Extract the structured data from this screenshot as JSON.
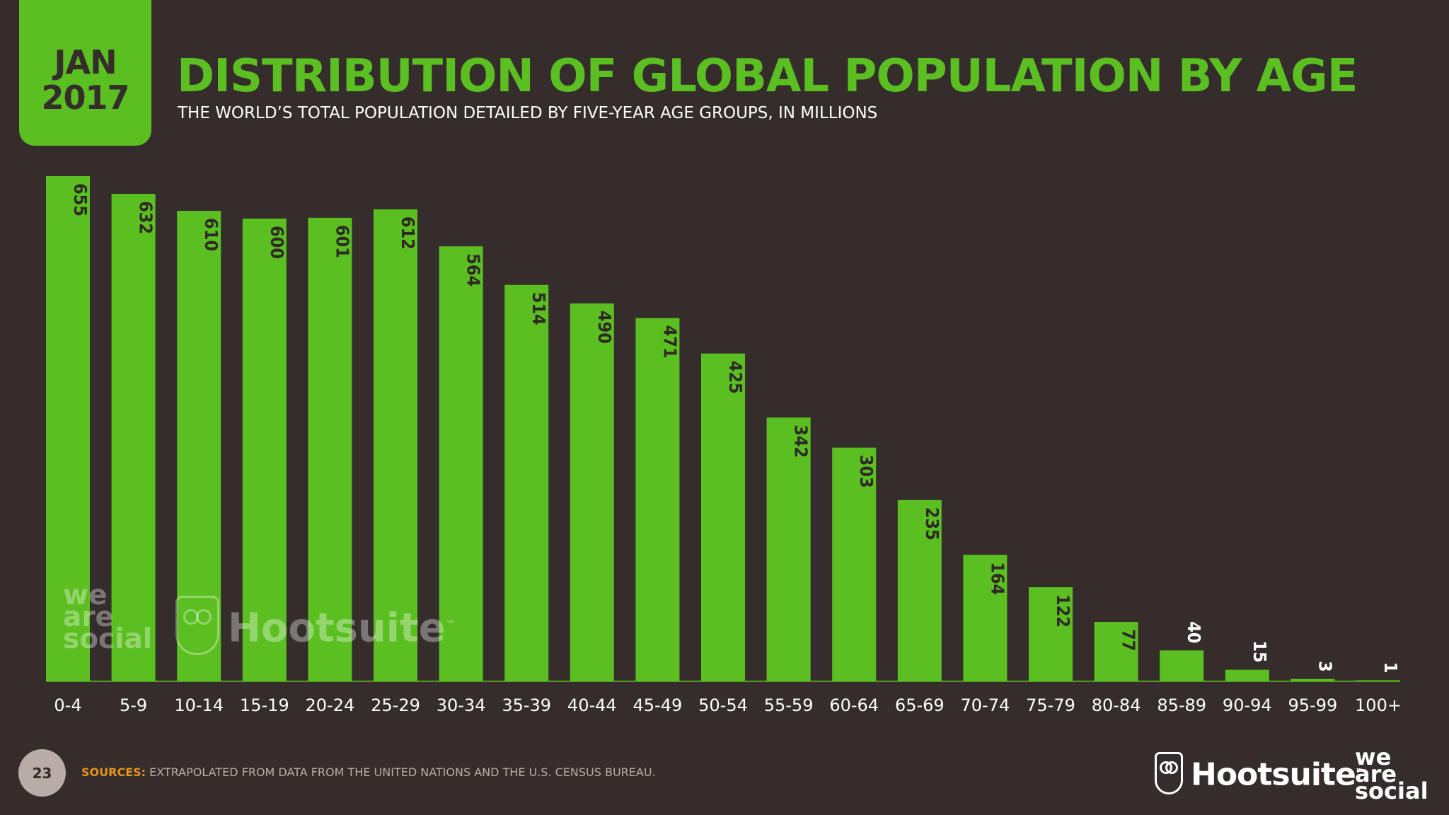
{
  "header": {
    "date_month": "JAN",
    "date_year": "2017",
    "title": "DISTRIBUTION OF GLOBAL POPULATION BY AGE",
    "subtitle": "THE WORLD’S TOTAL POPULATION DETAILED BY FIVE-YEAR AGE GROUPS, IN MILLIONS"
  },
  "chart_data": {
    "type": "bar",
    "title": "DISTRIBUTION OF GLOBAL POPULATION BY AGE",
    "subtitle": "THE WORLD’S TOTAL POPULATION DETAILED BY FIVE-YEAR AGE GROUPS, IN MILLIONS",
    "xlabel": "",
    "ylabel": "",
    "categories": [
      "0-4",
      "5-9",
      "10-14",
      "15-19",
      "20-24",
      "25-29",
      "30-34",
      "35-39",
      "40-44",
      "45-49",
      "50-54",
      "55-59",
      "60-64",
      "65-69",
      "70-74",
      "75-79",
      "80-84",
      "85-89",
      "90-94",
      "95-99",
      "100+"
    ],
    "values": [
      655,
      632,
      610,
      600,
      601,
      612,
      564,
      514,
      490,
      471,
      425,
      342,
      303,
      235,
      164,
      122,
      77,
      40,
      15,
      3,
      1
    ],
    "ylim": [
      0,
      655
    ],
    "grid": false,
    "bar_color": "#5bbf21",
    "data_labels": "rotated inside bars"
  },
  "watermark": {
    "brand_a": "we are social",
    "brand_b": "Hootsuite",
    "brand_b_tm": "™"
  },
  "footer": {
    "slide_number": "23",
    "sources_label": "SOURCES:",
    "sources_text": "EXTRAPOLATED FROM DATA FROM THE UNITED NATIONS AND THE U.S. CENSUS BUREAU.",
    "logo_hootsuite": "Hootsuite",
    "logo_tm": "™",
    "logo_was": "we are social"
  },
  "colors": {
    "background": "#342d2b",
    "accent": "#5bbf21",
    "sources_label": "#e6951b"
  }
}
